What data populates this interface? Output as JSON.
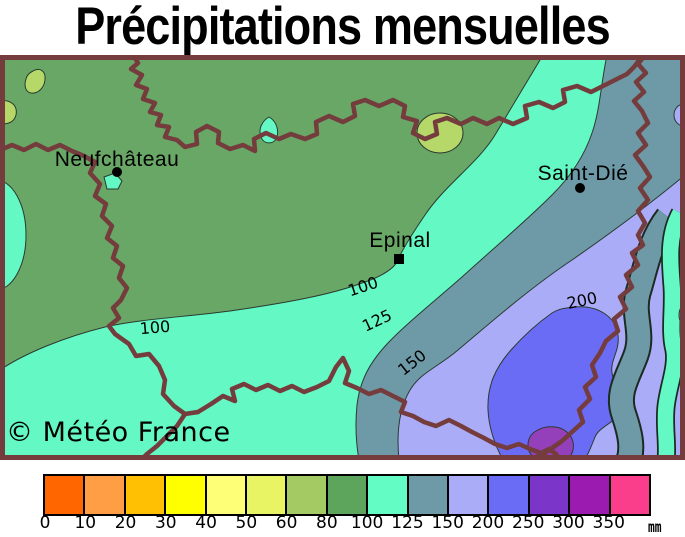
{
  "title": "Précipitations mensuelles",
  "copyright": "© Météo France",
  "map": {
    "cities": [
      {
        "name": "Neufchâteau",
        "marker": "dot"
      },
      {
        "name": "Epinal",
        "marker": "square"
      },
      {
        "name": "Saint-Dié",
        "marker": "dot"
      }
    ],
    "contour_labels": [
      "100",
      "100",
      "125",
      "150",
      "200"
    ]
  },
  "legend": {
    "unit": "mm",
    "tick_labels": [
      "0",
      "10",
      "20",
      "30",
      "40",
      "50",
      "60",
      "80",
      "100",
      "125",
      "150",
      "200",
      "250",
      "300",
      "350"
    ],
    "colors": [
      "#ff6600",
      "#ff9e45",
      "#ffc004",
      "#ffff00",
      "#ffff77",
      "#e8f464",
      "#a4ca63",
      "#5da45c",
      "#63fcc5",
      "#6e9aa8",
      "#abacf8",
      "#6b6cf5",
      "#7b35c8",
      "#9b1bb0",
      "#fb3e8c"
    ]
  },
  "map_colors": {
    "green_80_100": "#69a766",
    "cyan_100_125": "#63f8c4",
    "slate_125_150": "#6e9aa8",
    "lavender_150_200": "#abacf8",
    "blue_200_250": "#6b6cf5",
    "purple_250_300": "#9440bb",
    "yellowgreen_60_80": "#b5d869",
    "boundary": "#743c3c",
    "edge": "#1c2a22"
  }
}
